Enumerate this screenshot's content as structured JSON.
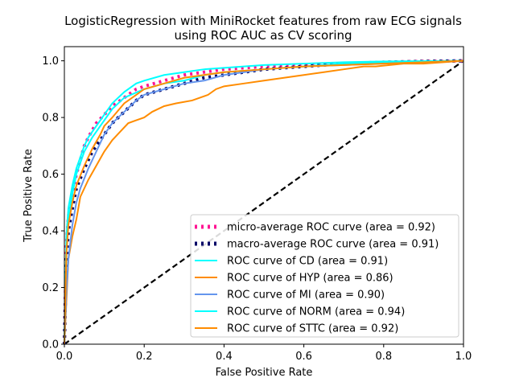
{
  "chart_data": {
    "type": "line",
    "title_line1": "LogisticRegression with MiniRocket features from raw ECG signals",
    "title_line2": "using ROC AUC as CV scoring",
    "xlabel": "False Positive Rate",
    "ylabel": "True Positive Rate",
    "xlim": [
      0.0,
      1.0
    ],
    "ylim": [
      0.0,
      1.05
    ],
    "x_ticks": [
      "0.0",
      "0.2",
      "0.4",
      "0.6",
      "0.8",
      "1.0"
    ],
    "y_ticks": [
      "0.0",
      "0.2",
      "0.4",
      "0.6",
      "0.8",
      "1.0"
    ],
    "grid": false,
    "legend_location": "lower-right",
    "series": [
      {
        "name": "micro-average ROC curve (area = 0.92)",
        "color": "#ff1493",
        "style": "dotted",
        "x": [
          0.0,
          0.005,
          0.01,
          0.02,
          0.03,
          0.04,
          0.05,
          0.06,
          0.08,
          0.1,
          0.12,
          0.15,
          0.18,
          0.2,
          0.25,
          0.3,
          0.35,
          0.4,
          0.45,
          0.5,
          0.6,
          0.7,
          0.8,
          0.9,
          1.0
        ],
        "y": [
          0.0,
          0.35,
          0.45,
          0.53,
          0.6,
          0.65,
          0.7,
          0.73,
          0.78,
          0.81,
          0.84,
          0.87,
          0.9,
          0.91,
          0.93,
          0.95,
          0.96,
          0.97,
          0.975,
          0.98,
          0.985,
          0.99,
          0.995,
          0.998,
          1.0
        ]
      },
      {
        "name": "macro-average ROC curve (area = 0.91)",
        "color": "#000066",
        "style": "dotted",
        "x": [
          0.0,
          0.005,
          0.01,
          0.02,
          0.03,
          0.05,
          0.07,
          0.1,
          0.12,
          0.15,
          0.18,
          0.2,
          0.25,
          0.3,
          0.35,
          0.4,
          0.45,
          0.5,
          0.55,
          0.6,
          0.65,
          0.7,
          0.8,
          0.9,
          1.0
        ],
        "y": [
          0.0,
          0.3,
          0.4,
          0.48,
          0.55,
          0.62,
          0.68,
          0.74,
          0.78,
          0.82,
          0.86,
          0.88,
          0.9,
          0.92,
          0.94,
          0.95,
          0.96,
          0.97,
          0.975,
          0.98,
          0.985,
          0.99,
          0.995,
          0.998,
          1.0
        ]
      },
      {
        "name": "ROC curve of CD (area = 0.91)",
        "color": "#00ffff",
        "style": "solid",
        "x": [
          0.0,
          0.005,
          0.01,
          0.02,
          0.03,
          0.05,
          0.07,
          0.1,
          0.12,
          0.15,
          0.2,
          0.25,
          0.3,
          0.35,
          0.4,
          0.45,
          0.5,
          0.55,
          0.6,
          0.7,
          0.8,
          0.9,
          1.0
        ],
        "y": [
          0.0,
          0.32,
          0.44,
          0.53,
          0.6,
          0.68,
          0.73,
          0.79,
          0.83,
          0.87,
          0.9,
          0.92,
          0.93,
          0.95,
          0.96,
          0.965,
          0.97,
          0.975,
          0.98,
          0.99,
          0.995,
          0.998,
          1.0
        ]
      },
      {
        "name": "ROC curve of HYP (area = 0.86)",
        "color": "#ff8c00",
        "style": "solid",
        "x": [
          0.0,
          0.01,
          0.02,
          0.03,
          0.04,
          0.06,
          0.08,
          0.1,
          0.12,
          0.14,
          0.16,
          0.18,
          0.2,
          0.22,
          0.25,
          0.28,
          0.32,
          0.36,
          0.38,
          0.4,
          0.45,
          0.5,
          0.55,
          0.6,
          0.65,
          0.7,
          0.75,
          0.78,
          0.85,
          0.9,
          1.0
        ],
        "y": [
          0.0,
          0.3,
          0.38,
          0.44,
          0.52,
          0.58,
          0.63,
          0.68,
          0.72,
          0.75,
          0.78,
          0.79,
          0.8,
          0.82,
          0.84,
          0.85,
          0.86,
          0.88,
          0.9,
          0.91,
          0.92,
          0.93,
          0.94,
          0.95,
          0.96,
          0.97,
          0.98,
          0.98,
          0.99,
          0.99,
          1.0
        ]
      },
      {
        "name": "ROC curve of MI (area = 0.90)",
        "color": "#6495ed",
        "style": "solid",
        "x": [
          0.0,
          0.005,
          0.01,
          0.02,
          0.03,
          0.04,
          0.06,
          0.08,
          0.1,
          0.12,
          0.15,
          0.18,
          0.2,
          0.25,
          0.3,
          0.35,
          0.4,
          0.45,
          0.5,
          0.6,
          0.7,
          0.8,
          0.9,
          1.0
        ],
        "y": [
          0.0,
          0.18,
          0.3,
          0.42,
          0.5,
          0.55,
          0.62,
          0.68,
          0.74,
          0.78,
          0.82,
          0.86,
          0.88,
          0.9,
          0.92,
          0.93,
          0.95,
          0.96,
          0.97,
          0.98,
          0.985,
          0.99,
          0.995,
          1.0
        ]
      },
      {
        "name": "ROC curve of NORM (area = 0.94)",
        "color": "#00ffff",
        "style": "solid",
        "x": [
          0.0,
          0.005,
          0.01,
          0.02,
          0.03,
          0.04,
          0.05,
          0.06,
          0.08,
          0.1,
          0.12,
          0.15,
          0.18,
          0.2,
          0.25,
          0.3,
          0.35,
          0.4,
          0.45,
          0.5,
          0.6,
          0.7,
          0.8,
          0.9,
          1.0
        ],
        "y": [
          0.0,
          0.38,
          0.48,
          0.56,
          0.62,
          0.66,
          0.7,
          0.73,
          0.77,
          0.81,
          0.85,
          0.89,
          0.92,
          0.93,
          0.95,
          0.96,
          0.97,
          0.975,
          0.98,
          0.985,
          0.99,
          0.995,
          0.998,
          0.999,
          1.0
        ]
      },
      {
        "name": "ROC curve of STTC (area = 0.92)",
        "color": "#ff8c00",
        "style": "solid",
        "x": [
          0.0,
          0.005,
          0.01,
          0.02,
          0.03,
          0.05,
          0.07,
          0.09,
          0.1,
          0.12,
          0.15,
          0.18,
          0.2,
          0.25,
          0.3,
          0.35,
          0.4,
          0.5,
          0.6,
          0.7,
          0.8,
          0.9,
          1.0
        ],
        "y": [
          0.0,
          0.32,
          0.42,
          0.5,
          0.56,
          0.63,
          0.69,
          0.74,
          0.77,
          0.8,
          0.85,
          0.88,
          0.9,
          0.92,
          0.94,
          0.95,
          0.96,
          0.97,
          0.98,
          0.985,
          0.99,
          0.995,
          1.0
        ]
      }
    ],
    "reference_line": {
      "x": [
        0.0,
        1.0
      ],
      "y": [
        0.0,
        1.0
      ],
      "color": "#000000",
      "style": "dashed"
    }
  }
}
